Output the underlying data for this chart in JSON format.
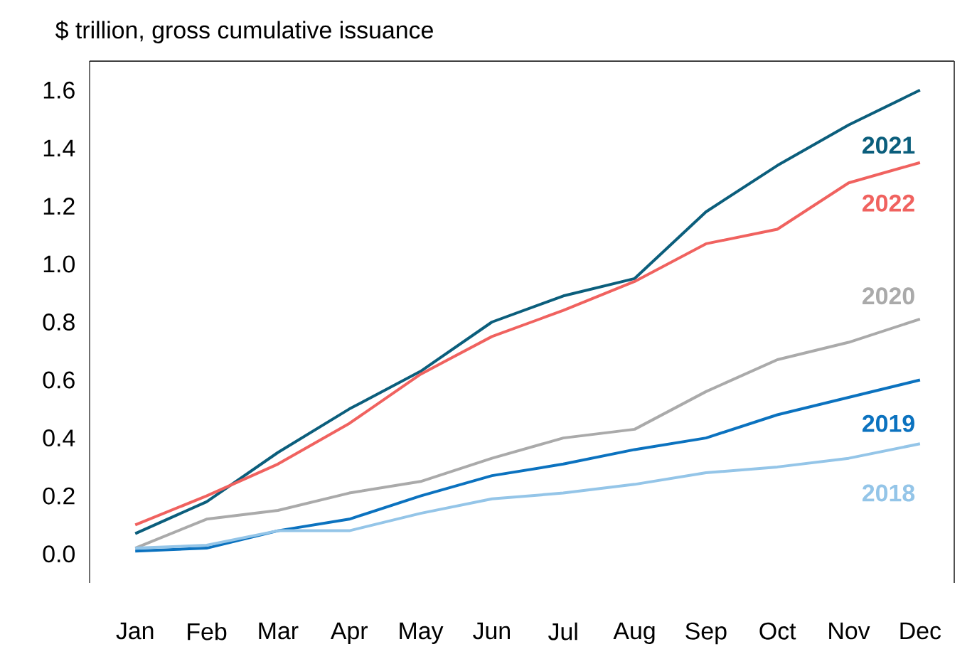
{
  "chart_data": {
    "type": "line",
    "ylabel": "$ trillion, gross cumulative issuance",
    "categories": [
      "Jan",
      "Feb",
      "Mar",
      "Apr",
      "May",
      "Jun",
      "Jul",
      "Aug",
      "Sep",
      "Oct",
      "Nov",
      "Dec"
    ],
    "ylim": [
      -0.1,
      1.7
    ],
    "yticks": [
      {
        "value": 0,
        "label": "0.0"
      },
      {
        "value": 0.2,
        "label": "0.2"
      },
      {
        "value": 0.4,
        "label": "0.4"
      },
      {
        "value": 0.6,
        "label": "0.6"
      },
      {
        "value": 0.8,
        "label": "0.8"
      },
      {
        "value": 1.0,
        "label": "1.0"
      },
      {
        "value": 1.2,
        "label": "1.2"
      },
      {
        "value": 1.4,
        "label": "1.4"
      },
      {
        "value": 1.6,
        "label": "1.6"
      }
    ],
    "grid": false,
    "legend": false,
    "marker": "none",
    "line_style": "solid",
    "series": [
      {
        "name": "2021",
        "color": "#0b5e7c",
        "values": [
          0.07,
          0.18,
          0.35,
          0.5,
          0.63,
          0.8,
          0.89,
          0.95,
          1.18,
          1.34,
          1.48,
          1.6
        ]
      },
      {
        "name": "2022",
        "color": "#f0625f",
        "values": [
          0.1,
          0.2,
          0.31,
          0.45,
          0.62,
          0.75,
          0.84,
          0.94,
          1.07,
          1.12,
          1.28,
          1.35
        ]
      },
      {
        "name": "2020",
        "color": "#aaaaaa",
        "values": [
          0.02,
          0.12,
          0.15,
          0.21,
          0.25,
          0.33,
          0.4,
          0.43,
          0.56,
          0.67,
          0.73,
          0.81
        ]
      },
      {
        "name": "2019",
        "color": "#0b72bf",
        "values": [
          0.01,
          0.02,
          0.08,
          0.12,
          0.2,
          0.27,
          0.31,
          0.36,
          0.4,
          0.48,
          0.54,
          0.6
        ]
      },
      {
        "name": "2018",
        "color": "#94c5e8",
        "values": [
          0.02,
          0.03,
          0.08,
          0.08,
          0.14,
          0.19,
          0.21,
          0.24,
          0.28,
          0.3,
          0.33,
          0.38
        ]
      }
    ]
  }
}
